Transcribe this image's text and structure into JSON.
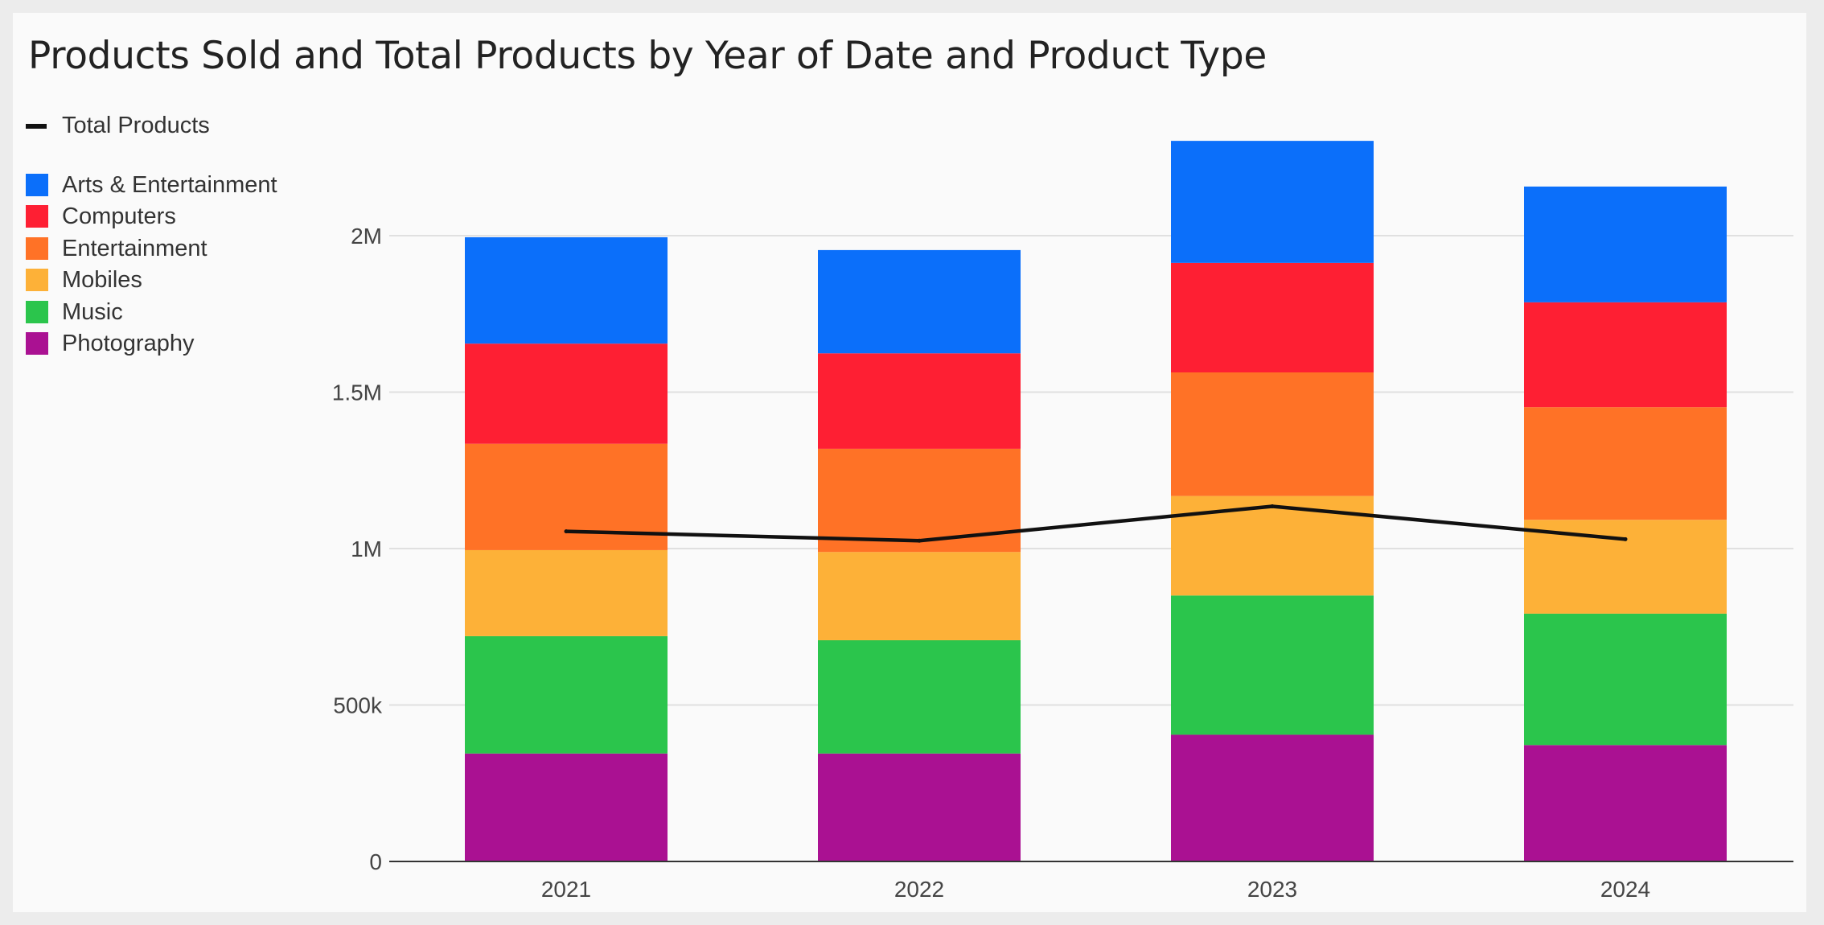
{
  "chart_data": {
    "type": "bar",
    "stacked": true,
    "title": "Products Sold and Total Products by Year of Date and Product Type",
    "categories": [
      "2021",
      "2022",
      "2023",
      "2024"
    ],
    "series": [
      {
        "name": "Photography",
        "color": "#aa1192",
        "values": [
          345000,
          345000,
          405000,
          372000
        ]
      },
      {
        "name": "Music",
        "color": "#2bc54c",
        "values": [
          375000,
          362000,
          445000,
          420000
        ]
      },
      {
        "name": "Mobiles",
        "color": "#fdb138",
        "values": [
          275000,
          282000,
          318000,
          300000
        ]
      },
      {
        "name": "Entertainment",
        "color": "#ff7226",
        "values": [
          340000,
          330000,
          395000,
          360000
        ]
      },
      {
        "name": "Computers",
        "color": "#fe1f33",
        "values": [
          320000,
          305000,
          350000,
          335000
        ]
      },
      {
        "name": "Arts & Entertainment",
        "color": "#0b6ffa",
        "values": [
          340000,
          330000,
          390000,
          370000
        ]
      }
    ],
    "line_series": {
      "name": "Total Products",
      "color": "#111111",
      "values": [
        1055000,
        1025000,
        1135000,
        1030000
      ]
    },
    "legend_order": [
      "Arts & Entertainment",
      "Computers",
      "Entertainment",
      "Mobiles",
      "Music",
      "Photography"
    ],
    "y_ticks": [
      {
        "value": 0,
        "label": "0"
      },
      {
        "value": 500000,
        "label": "500k"
      },
      {
        "value": 1000000,
        "label": "1M"
      },
      {
        "value": 1500000,
        "label": "1.5M"
      },
      {
        "value": 2000000,
        "label": "2M"
      }
    ],
    "ylim": [
      0,
      2350000
    ],
    "grid": true,
    "legend_position": "top-left",
    "xlabel": "",
    "ylabel": ""
  }
}
